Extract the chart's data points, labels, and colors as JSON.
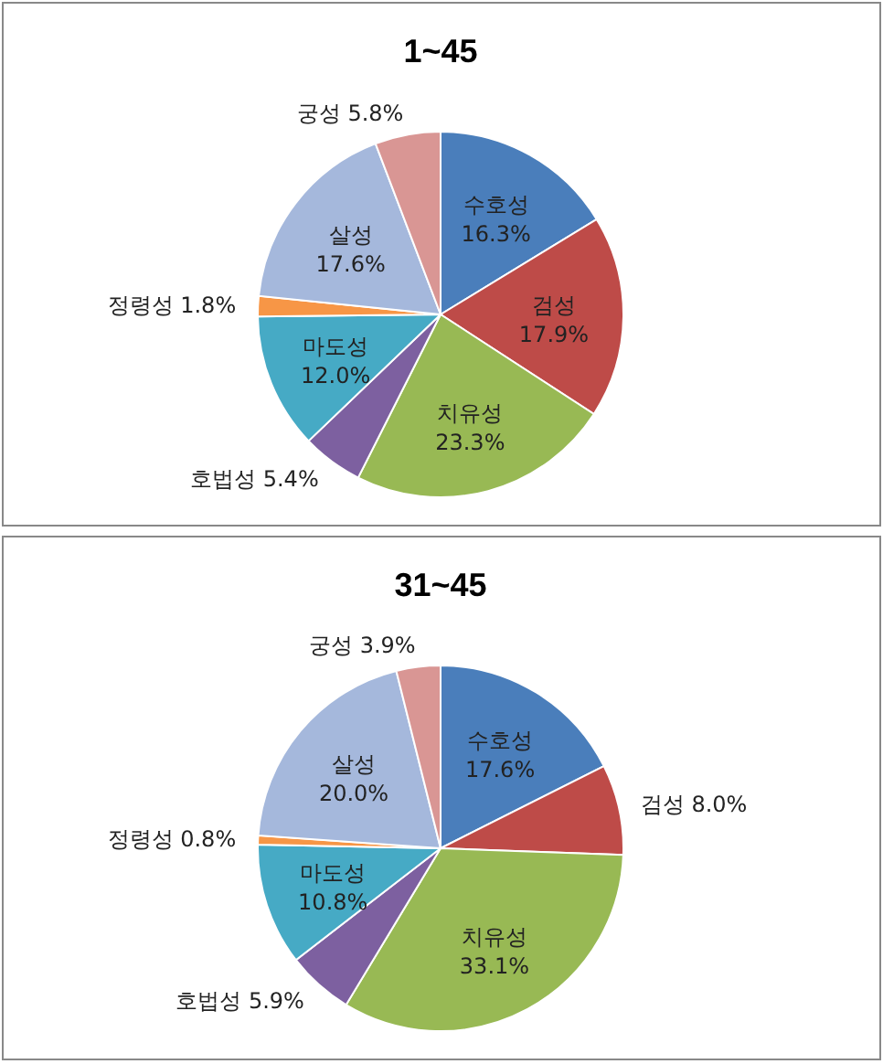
{
  "chart_data": [
    {
      "type": "pie",
      "title": "1~45",
      "categories": [
        "수호성",
        "검성",
        "치유성",
        "호법성",
        "마도성",
        "정령성",
        "살성",
        "궁성"
      ],
      "values": [
        16.3,
        17.9,
        23.3,
        5.4,
        12.0,
        1.8,
        17.6,
        5.8
      ],
      "value_labels": [
        "16.3%",
        "17.9%",
        "23.3%",
        "5.4%",
        "12.0%",
        "1.8%",
        "17.6%",
        "5.8%"
      ],
      "colors": [
        "#4a7ebb",
        "#be4b48",
        "#98b954",
        "#7d60a0",
        "#46aac5",
        "#f79646",
        "#a5b8dc",
        "#d99694"
      ],
      "legend": false
    },
    {
      "type": "pie",
      "title": "31~45",
      "categories": [
        "수호성",
        "검성",
        "치유성",
        "호법성",
        "마도성",
        "정령성",
        "살성",
        "궁성"
      ],
      "values": [
        17.6,
        8.0,
        33.1,
        5.9,
        10.8,
        0.8,
        20.0,
        3.9
      ],
      "value_labels": [
        "17.6%",
        "8.0%",
        "33.1%",
        "5.9%",
        "10.8%",
        "0.8%",
        "20.0%",
        "3.9%"
      ],
      "colors": [
        "#4a7ebb",
        "#be4b48",
        "#98b954",
        "#7d60a0",
        "#46aac5",
        "#f79646",
        "#a5b8dc",
        "#d99694"
      ],
      "legend": false
    }
  ]
}
